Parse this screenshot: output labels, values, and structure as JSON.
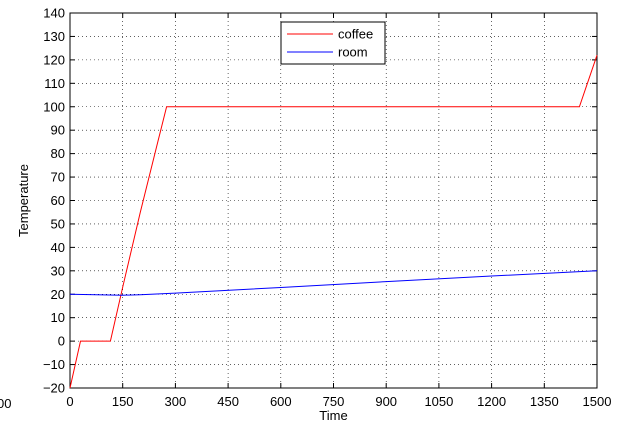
{
  "chart_data": {
    "type": "line",
    "title": "",
    "xlabel": "Time",
    "ylabel": "Temperature",
    "xlim": [
      0,
      1500
    ],
    "ylim": [
      -20,
      140
    ],
    "xticks": [
      0,
      150,
      300,
      450,
      600,
      750,
      900,
      1050,
      1200,
      1350,
      1500
    ],
    "yticks": [
      -20,
      -10,
      0,
      10,
      20,
      30,
      40,
      50,
      60,
      70,
      80,
      90,
      100,
      110,
      120,
      130,
      140
    ],
    "xtick_labels": [
      "0",
      "150",
      "300",
      "450",
      "600",
      "750",
      "900",
      "1050",
      "1200",
      "1350",
      "1500"
    ],
    "ytick_labels": [
      "−20",
      "−10",
      "0",
      "10",
      "20",
      "30",
      "40",
      "50",
      "60",
      "70",
      "80",
      "90",
      "100",
      "110",
      "120",
      "130",
      "140"
    ],
    "cut_off_tick_label": "00",
    "grid": true,
    "grid_style": "dotted",
    "legend_position": "top-center",
    "series": [
      {
        "name": "coffee",
        "color": "#ff0000",
        "x": [
          0,
          30,
          115,
          150,
          200,
          250,
          275,
          1450,
          1500
        ],
        "y": [
          -20,
          0,
          0,
          23,
          55,
          85,
          100,
          100,
          122
        ]
      },
      {
        "name": "room",
        "color": "#0000ff",
        "x": [
          0,
          150,
          200,
          300,
          600,
          900,
          1200,
          1500
        ],
        "y": [
          20,
          19.6,
          19.8,
          20.5,
          22.9,
          25.4,
          27.8,
          30
        ]
      }
    ]
  }
}
